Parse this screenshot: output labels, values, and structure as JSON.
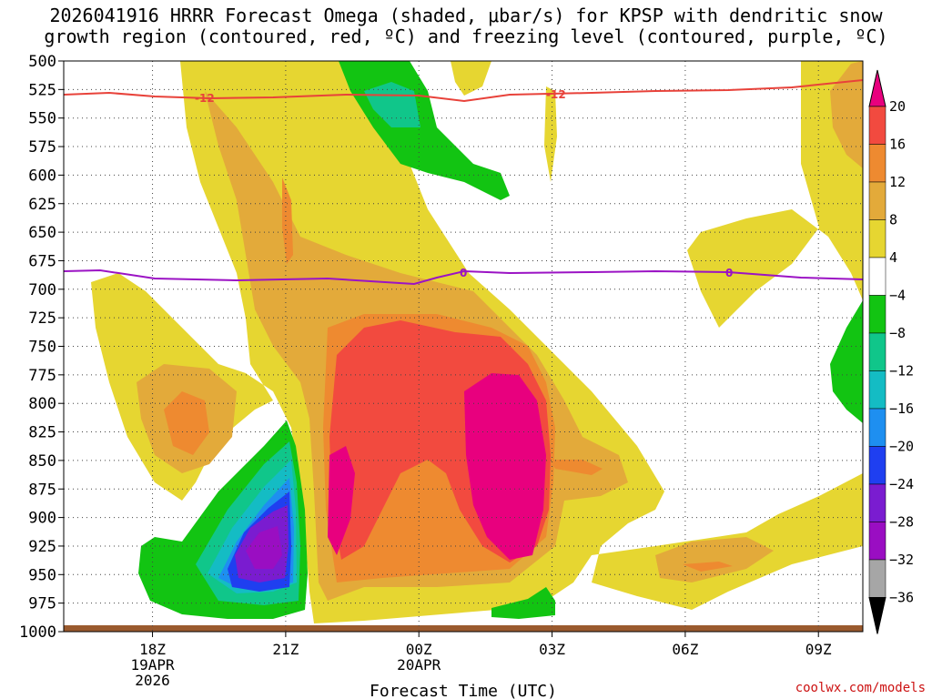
{
  "chart_data": {
    "type": "heatmap",
    "title_line1": "2026041916 HRRR Forecast Omega (shaded, μbar/s) for KPSP with dendritic snow",
    "title_line2": "growth region (contoured, red, ºC) and freezing level (contoured, purple, ºC)",
    "xlabel": "Forecast Time (UTC)",
    "credit": "coolwx.com/models",
    "y_ticks": [
      500,
      525,
      550,
      575,
      600,
      625,
      650,
      675,
      700,
      725,
      750,
      775,
      800,
      825,
      850,
      875,
      900,
      925,
      950,
      975,
      1000
    ],
    "x_ticks": [
      {
        "label": "18Z",
        "hour": 2,
        "sub1": "19APR",
        "sub2": "2026"
      },
      {
        "label": "21Z",
        "hour": 5,
        "sub1": "",
        "sub2": ""
      },
      {
        "label": "00Z",
        "hour": 8,
        "sub1": "20APR",
        "sub2": ""
      },
      {
        "label": "03Z",
        "hour": 11,
        "sub1": "",
        "sub2": ""
      },
      {
        "label": "06Z",
        "hour": 14,
        "sub1": "",
        "sub2": ""
      },
      {
        "label": "09Z",
        "hour": 17,
        "sub1": "",
        "sub2": ""
      }
    ],
    "x_range_hours": [
      0,
      18
    ],
    "y_range_hpa": [
      500,
      1000
    ],
    "colorbar": {
      "levels": [
        -36,
        -32,
        -28,
        -24,
        -20,
        -16,
        -12,
        -8,
        -4,
        4,
        8,
        12,
        16,
        20
      ],
      "labels": [
        "20",
        "16",
        "12",
        "8",
        "4",
        "−4",
        "−8",
        "−12",
        "−16",
        "−20",
        "−24",
        "−28",
        "−32",
        "−36"
      ],
      "colors_top_to_bottom": [
        "#e8007e",
        "#f24a3f",
        "#ee8a30",
        "#e3aa3a",
        "#e6d631",
        "#ffffff",
        "#12c412",
        "#10c68a",
        "#14bcc4",
        "#1e8ff0",
        "#1f3ff0",
        "#7a1cd0",
        "#9a0ec2",
        "#a6a6a6",
        "#000000"
      ]
    },
    "contours": {
      "dendritic": {
        "label": "-12",
        "color": "#e8423a"
      },
      "freezing": {
        "label": "0",
        "color": "#9b13c4"
      }
    },
    "grid": true
  }
}
